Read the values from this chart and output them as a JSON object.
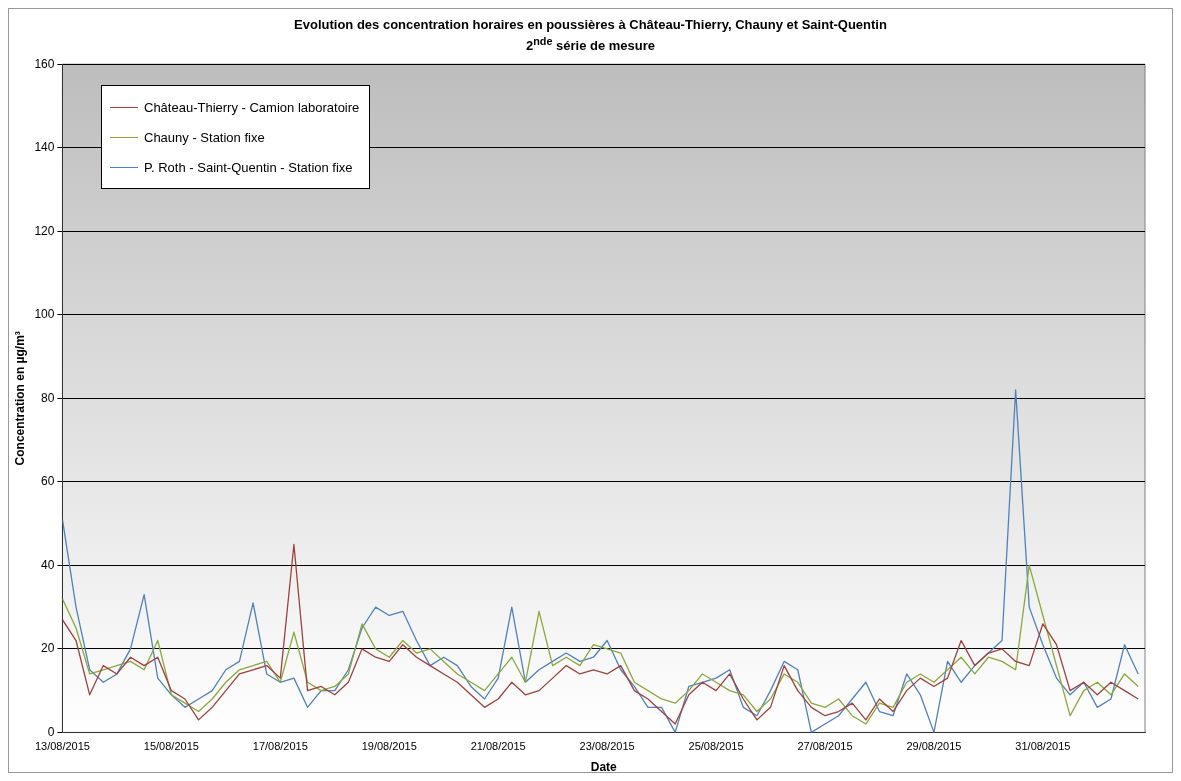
{
  "chart_data": {
    "type": "line",
    "title": "Evolution des concentration horaires en poussières à Château-Thierry, Chauny et Saint-Quentin",
    "subtitle": "2$^{nde}$ série de mesure",
    "xlabel": "Date",
    "ylabel": "Concentration en µg/m³",
    "x": [
      "2015-08-13T00:00",
      "2015-08-13T06:00",
      "2015-08-13T12:00",
      "2015-08-13T18:00",
      "2015-08-14T00:00",
      "2015-08-14T06:00",
      "2015-08-14T12:00",
      "2015-08-14T18:00",
      "2015-08-15T00:00",
      "2015-08-15T06:00",
      "2015-08-15T12:00",
      "2015-08-15T18:00",
      "2015-08-16T00:00",
      "2015-08-16T06:00",
      "2015-08-16T12:00",
      "2015-08-16T18:00",
      "2015-08-17T00:00",
      "2015-08-17T06:00",
      "2015-08-17T12:00",
      "2015-08-17T18:00",
      "2015-08-18T00:00",
      "2015-08-18T06:00",
      "2015-08-18T12:00",
      "2015-08-18T18:00",
      "2015-08-19T00:00",
      "2015-08-19T06:00",
      "2015-08-19T12:00",
      "2015-08-19T18:00",
      "2015-08-20T00:00",
      "2015-08-20T06:00",
      "2015-08-20T12:00",
      "2015-08-20T18:00",
      "2015-08-21T00:00",
      "2015-08-21T06:00",
      "2015-08-21T12:00",
      "2015-08-21T18:00",
      "2015-08-22T00:00",
      "2015-08-22T06:00",
      "2015-08-22T12:00",
      "2015-08-22T18:00",
      "2015-08-23T00:00",
      "2015-08-23T06:00",
      "2015-08-23T12:00",
      "2015-08-23T18:00",
      "2015-08-24T00:00",
      "2015-08-24T06:00",
      "2015-08-24T12:00",
      "2015-08-24T18:00",
      "2015-08-25T00:00",
      "2015-08-25T06:00",
      "2015-08-25T12:00",
      "2015-08-25T18:00",
      "2015-08-26T00:00",
      "2015-08-26T06:00",
      "2015-08-26T12:00",
      "2015-08-26T18:00",
      "2015-08-27T00:00",
      "2015-08-27T06:00",
      "2015-08-27T12:00",
      "2015-08-27T18:00",
      "2015-08-28T00:00",
      "2015-08-28T06:00",
      "2015-08-28T12:00",
      "2015-08-28T18:00",
      "2015-08-29T00:00",
      "2015-08-29T06:00",
      "2015-08-29T12:00",
      "2015-08-29T18:00",
      "2015-08-30T00:00",
      "2015-08-30T06:00",
      "2015-08-30T12:00",
      "2015-08-30T18:00",
      "2015-08-31T00:00",
      "2015-08-31T06:00",
      "2015-08-31T12:00",
      "2015-08-31T18:00",
      "2015-09-01T00:00",
      "2015-09-01T06:00",
      "2015-09-01T12:00",
      "2015-09-01T18:00"
    ],
    "series": [
      {
        "name": "Château-Thierry - Camion laboratoire",
        "color": "#a0413e",
        "values": [
          27,
          22,
          9,
          16,
          14,
          18,
          16,
          18,
          10,
          8,
          3,
          6,
          10,
          14,
          15,
          16,
          13,
          45,
          10,
          11,
          9,
          12,
          20,
          18,
          17,
          21,
          18,
          16,
          14,
          12,
          9,
          6,
          8,
          12,
          9,
          10,
          13,
          16,
          14,
          15,
          14,
          16,
          10,
          8,
          5,
          2,
          9,
          12,
          10,
          14,
          8,
          3,
          6,
          16,
          10,
          6,
          4,
          5,
          7,
          3,
          8,
          5,
          10,
          13,
          11,
          13,
          22,
          16,
          19,
          20,
          17,
          16,
          26,
          21,
          10,
          12,
          9,
          12,
          10,
          8
        ]
      },
      {
        "name": "Chauny - Station fixe",
        "color": "#8aa83c",
        "values": [
          32,
          25,
          14,
          15,
          16,
          17,
          15,
          22,
          9,
          7,
          5,
          8,
          12,
          15,
          16,
          17,
          12,
          24,
          12,
          10,
          11,
          14,
          26,
          20,
          18,
          22,
          19,
          20,
          17,
          14,
          12,
          10,
          14,
          18,
          12,
          29,
          16,
          18,
          16,
          21,
          20,
          19,
          12,
          10,
          8,
          7,
          10,
          14,
          12,
          10,
          9,
          5,
          8,
          14,
          12,
          7,
          6,
          8,
          4,
          2,
          7,
          6,
          12,
          14,
          12,
          15,
          18,
          14,
          18,
          17,
          15,
          40,
          28,
          16,
          4,
          10,
          12,
          9,
          14,
          11
        ]
      },
      {
        "name": "P. Roth - Saint-Quentin - Station fixe",
        "color": "#4f81bd",
        "values": [
          51,
          30,
          15,
          12,
          14,
          20,
          33,
          13,
          9,
          6,
          8,
          10,
          15,
          17,
          31,
          14,
          12,
          13,
          6,
          10,
          10,
          15,
          25,
          30,
          28,
          29,
          22,
          16,
          18,
          16,
          11,
          8,
          13,
          30,
          12,
          15,
          17,
          19,
          17,
          18,
          22,
          15,
          11,
          6,
          6,
          0,
          11,
          12,
          13,
          15,
          6,
          4,
          10,
          17,
          15,
          0,
          2,
          4,
          8,
          12,
          5,
          4,
          14,
          9,
          0,
          17,
          12,
          16,
          19,
          22,
          82,
          30,
          21,
          13,
          9,
          12,
          6,
          8,
          21,
          14
        ]
      }
    ],
    "xlim": [
      "2015-08-13T00:00",
      "2015-09-01T21:00"
    ],
    "xticks": [
      {
        "value": "2015-08-13",
        "label": "13/08/2015"
      },
      {
        "value": "2015-08-15",
        "label": "15/08/2015"
      },
      {
        "value": "2015-08-17",
        "label": "17/08/2015"
      },
      {
        "value": "2015-08-19",
        "label": "19/08/2015"
      },
      {
        "value": "2015-08-21",
        "label": "21/08/2015"
      },
      {
        "value": "2015-08-23",
        "label": "23/08/2015"
      },
      {
        "value": "2015-08-25",
        "label": "25/08/2015"
      },
      {
        "value": "2015-08-27",
        "label": "27/08/2015"
      },
      {
        "value": "2015-08-29",
        "label": "29/08/2015"
      },
      {
        "value": "2015-08-31",
        "label": "31/08/2015"
      }
    ],
    "ylim": [
      0,
      160
    ],
    "yticks": [
      0,
      20,
      40,
      60,
      80,
      100,
      120,
      140,
      160
    ],
    "grid": "y",
    "legend": "top left",
    "marker": "none",
    "line_style": "solid"
  }
}
